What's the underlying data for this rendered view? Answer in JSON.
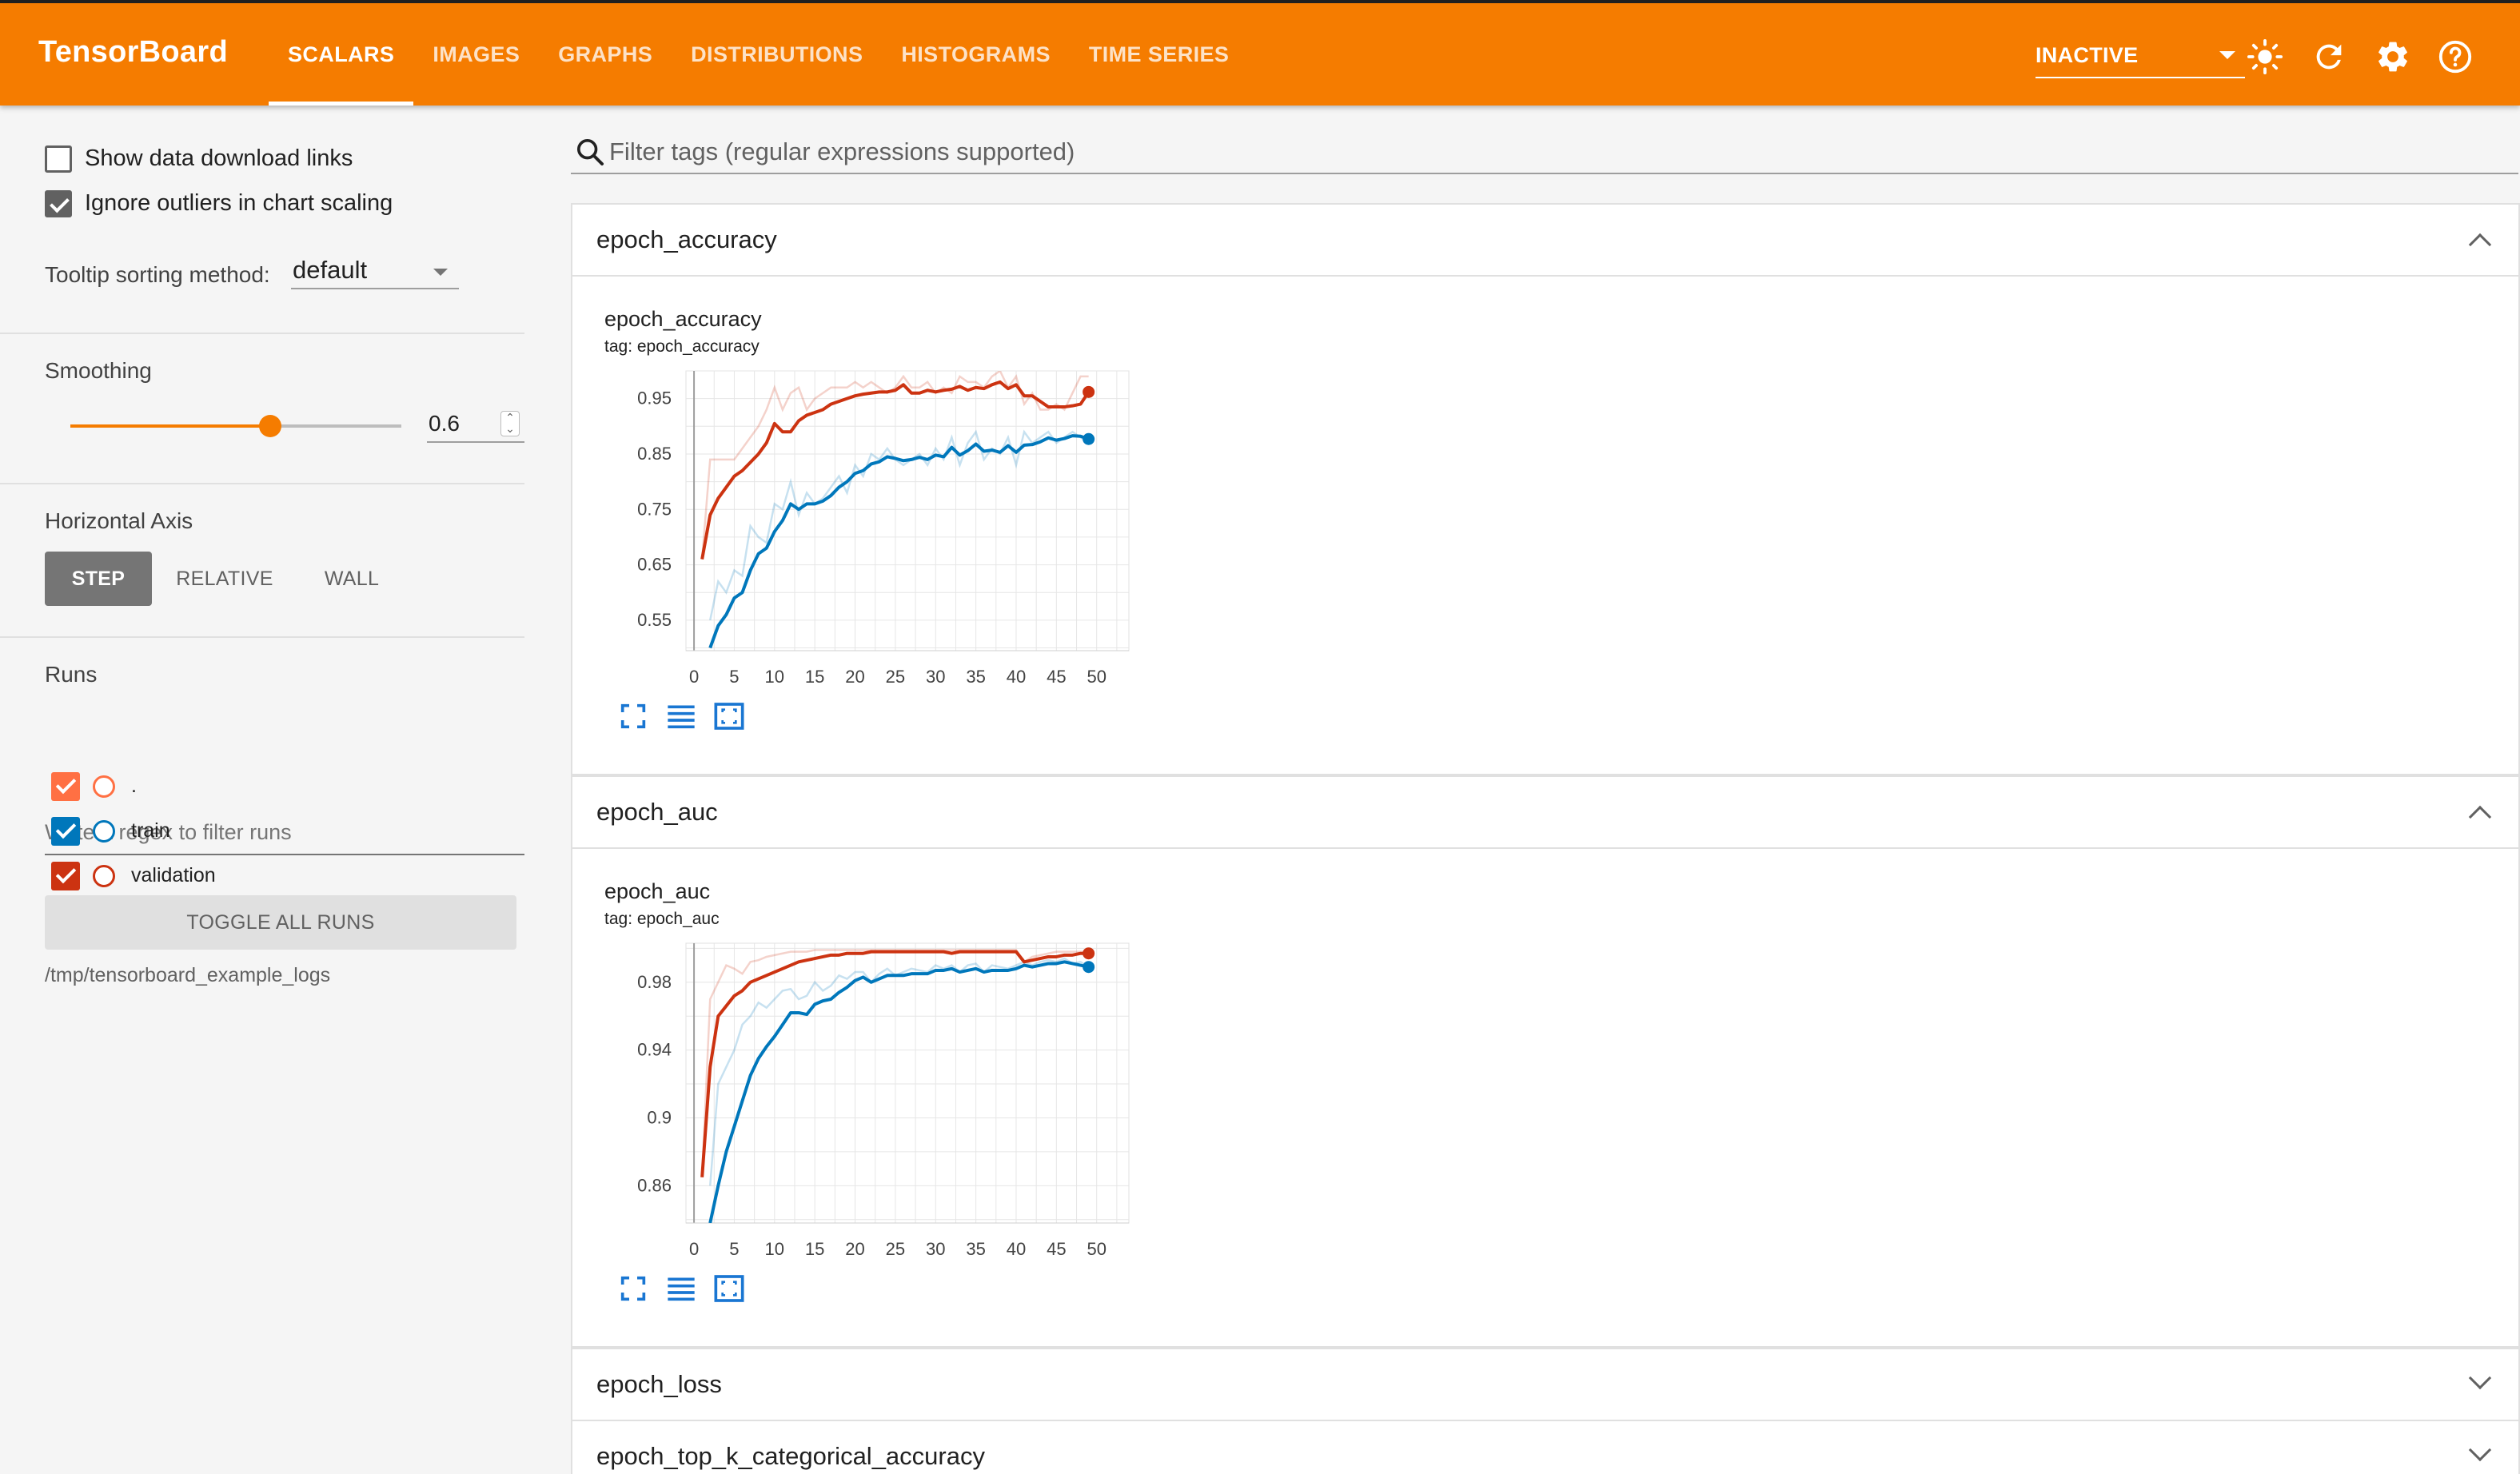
{
  "app": {
    "title": "TensorBoard",
    "tabs": [
      "SCALARS",
      "IMAGES",
      "GRAPHS",
      "DISTRIBUTIONS",
      "HISTOGRAMS",
      "TIME SERIES"
    ],
    "active_tab": "SCALARS",
    "status_select": "INACTIVE",
    "accent_color": "#f57c00",
    "icons": [
      "sun-icon",
      "refresh-icon",
      "settings-gear-icon",
      "help-icon"
    ]
  },
  "sidebar": {
    "show_download_links": {
      "label": "Show data download links",
      "checked": false
    },
    "ignore_outliers": {
      "label": "Ignore outliers in chart scaling",
      "checked": true
    },
    "tooltip_sorting": {
      "label": "Tooltip sorting method:",
      "value": "default"
    },
    "smoothing": {
      "label": "Smoothing",
      "value": "0.6",
      "fraction": 0.6
    },
    "horizontal_axis": {
      "label": "Horizontal Axis",
      "options": [
        "STEP",
        "RELATIVE",
        "WALL"
      ],
      "selected": "STEP"
    },
    "runs": {
      "label": "Runs",
      "filter_placeholder": "Write a regex to filter runs",
      "items": [
        {
          "name": ".",
          "color": "#ff7043",
          "checked": true
        },
        {
          "name": "train",
          "color": "#0077bb",
          "checked": true
        },
        {
          "name": "validation",
          "color": "#cc3311",
          "checked": true
        }
      ],
      "toggle_all": "TOGGLE ALL RUNS",
      "logdir": "/tmp/tensorboard_example_logs"
    }
  },
  "main": {
    "filter_placeholder": "Filter tags (regular expressions supported)",
    "cards": [
      {
        "title": "epoch_accuracy",
        "expanded": true
      },
      {
        "title": "epoch_auc",
        "expanded": true
      },
      {
        "title": "epoch_loss",
        "expanded": false
      },
      {
        "title": "epoch_top_k_categorical_accuracy",
        "expanded": false
      }
    ]
  },
  "chart_data": [
    {
      "type": "line",
      "title": "epoch_accuracy",
      "subtitle": "tag: epoch_accuracy",
      "xlim": [
        -1,
        54
      ],
      "ylim": [
        0.495,
        1.0
      ],
      "xticks": [
        0,
        5,
        10,
        15,
        20,
        25,
        30,
        35,
        40,
        45,
        50
      ],
      "yticks": [
        0.55,
        0.65,
        0.75,
        0.85,
        0.95
      ],
      "ytick_labels": [
        "0.55",
        "0.65",
        "0.75",
        "0.85",
        "0.95"
      ],
      "series": [
        {
          "name": "train",
          "color": "#0077bb",
          "x": [
            2,
            3,
            4,
            5,
            6,
            7,
            8,
            9,
            10,
            11,
            12,
            13,
            14,
            15,
            16,
            17,
            18,
            19,
            20,
            21,
            22,
            23,
            24,
            25,
            26,
            27,
            28,
            29,
            30,
            31,
            32,
            33,
            34,
            35,
            36,
            37,
            38,
            39,
            40,
            41,
            42,
            43,
            44,
            45,
            46,
            47,
            48,
            49
          ],
          "raw": [
            0.55,
            0.62,
            0.6,
            0.64,
            0.63,
            0.72,
            0.7,
            0.69,
            0.76,
            0.75,
            0.8,
            0.74,
            0.78,
            0.76,
            0.77,
            0.79,
            0.81,
            0.78,
            0.83,
            0.81,
            0.85,
            0.84,
            0.86,
            0.84,
            0.83,
            0.84,
            0.85,
            0.83,
            0.86,
            0.84,
            0.88,
            0.83,
            0.87,
            0.89,
            0.84,
            0.86,
            0.85,
            0.88,
            0.83,
            0.89,
            0.87,
            0.88,
            0.89,
            0.87,
            0.88,
            0.89,
            0.88,
            0.87
          ],
          "smoothed": [
            0.5,
            0.54,
            0.56,
            0.59,
            0.6,
            0.64,
            0.67,
            0.68,
            0.71,
            0.73,
            0.76,
            0.75,
            0.76,
            0.76,
            0.765,
            0.775,
            0.79,
            0.8,
            0.815,
            0.82,
            0.832,
            0.836,
            0.845,
            0.842,
            0.838,
            0.84,
            0.844,
            0.84,
            0.848,
            0.845,
            0.862,
            0.848,
            0.856,
            0.868,
            0.855,
            0.857,
            0.853,
            0.865,
            0.853,
            0.866,
            0.867,
            0.872,
            0.879,
            0.875,
            0.878,
            0.883,
            0.882,
            0.877
          ]
        },
        {
          "name": "validation",
          "color": "#cc3311",
          "x": [
            1,
            2,
            3,
            4,
            5,
            6,
            7,
            8,
            9,
            10,
            11,
            12,
            13,
            14,
            15,
            16,
            17,
            18,
            19,
            20,
            21,
            22,
            23,
            24,
            25,
            26,
            27,
            28,
            29,
            30,
            31,
            32,
            33,
            34,
            35,
            36,
            37,
            38,
            39,
            40,
            41,
            42,
            43,
            44,
            45,
            46,
            47,
            48,
            49
          ],
          "raw": [
            0.66,
            0.84,
            0.84,
            0.84,
            0.84,
            0.86,
            0.88,
            0.9,
            0.93,
            0.97,
            0.93,
            0.96,
            0.97,
            0.93,
            0.95,
            0.96,
            0.97,
            0.97,
            0.97,
            0.98,
            0.97,
            0.98,
            0.97,
            0.96,
            0.97,
            0.99,
            0.97,
            0.97,
            0.98,
            0.96,
            0.97,
            0.96,
            0.99,
            0.98,
            0.98,
            0.97,
            0.99,
            1.0,
            0.97,
            0.99,
            0.94,
            0.96,
            0.93,
            0.93,
            0.94,
            0.93,
            0.96,
            0.99,
            0.99
          ],
          "smoothed": [
            0.66,
            0.74,
            0.77,
            0.79,
            0.81,
            0.82,
            0.835,
            0.85,
            0.87,
            0.905,
            0.89,
            0.89,
            0.91,
            0.92,
            0.925,
            0.93,
            0.94,
            0.945,
            0.95,
            0.955,
            0.958,
            0.96,
            0.962,
            0.962,
            0.965,
            0.975,
            0.96,
            0.96,
            0.965,
            0.962,
            0.965,
            0.967,
            0.972,
            0.965,
            0.97,
            0.968,
            0.975,
            0.98,
            0.968,
            0.975,
            0.955,
            0.955,
            0.945,
            0.935,
            0.935,
            0.935,
            0.937,
            0.94,
            0.962
          ]
        }
      ]
    },
    {
      "type": "line",
      "title": "epoch_auc",
      "subtitle": "tag: epoch_auc",
      "xlim": [
        -1,
        54
      ],
      "ylim": [
        0.838,
        1.003
      ],
      "xticks": [
        0,
        5,
        10,
        15,
        20,
        25,
        30,
        35,
        40,
        45,
        50
      ],
      "yticks": [
        0.86,
        0.9,
        0.94,
        0.98
      ],
      "ytick_labels": [
        "0.86",
        "0.9",
        "0.94",
        "0.98"
      ],
      "series": [
        {
          "name": "train",
          "color": "#0077bb",
          "x": [
            2,
            3,
            4,
            5,
            6,
            7,
            8,
            9,
            10,
            11,
            12,
            13,
            14,
            15,
            16,
            17,
            18,
            19,
            20,
            21,
            22,
            23,
            24,
            25,
            26,
            27,
            28,
            29,
            30,
            31,
            32,
            33,
            34,
            35,
            36,
            37,
            38,
            39,
            40,
            41,
            42,
            43,
            44,
            45,
            46,
            47,
            48,
            49
          ],
          "raw": [
            0.86,
            0.92,
            0.93,
            0.94,
            0.955,
            0.96,
            0.968,
            0.965,
            0.97,
            0.975,
            0.976,
            0.97,
            0.972,
            0.98,
            0.975,
            0.978,
            0.984,
            0.982,
            0.986,
            0.986,
            0.98,
            0.985,
            0.988,
            0.984,
            0.986,
            0.988,
            0.987,
            0.986,
            0.99,
            0.988,
            0.99,
            0.986,
            0.99,
            0.991,
            0.986,
            0.99,
            0.989,
            0.988,
            0.99,
            0.992,
            0.99,
            0.992,
            0.993,
            0.992,
            0.994,
            0.991,
            0.992,
            0.989
          ],
          "smoothed": [
            0.838,
            0.86,
            0.88,
            0.895,
            0.91,
            0.925,
            0.935,
            0.942,
            0.948,
            0.955,
            0.962,
            0.962,
            0.961,
            0.967,
            0.969,
            0.97,
            0.974,
            0.977,
            0.981,
            0.983,
            0.98,
            0.982,
            0.984,
            0.984,
            0.984,
            0.985,
            0.985,
            0.985,
            0.987,
            0.987,
            0.988,
            0.986,
            0.987,
            0.988,
            0.986,
            0.987,
            0.987,
            0.987,
            0.988,
            0.99,
            0.989,
            0.99,
            0.991,
            0.991,
            0.992,
            0.991,
            0.99,
            0.989
          ]
        },
        {
          "name": "validation",
          "color": "#cc3311",
          "x": [
            1,
            2,
            3,
            4,
            5,
            6,
            7,
            8,
            9,
            10,
            11,
            12,
            13,
            14,
            15,
            16,
            17,
            18,
            19,
            20,
            21,
            22,
            23,
            24,
            25,
            26,
            27,
            28,
            29,
            30,
            31,
            32,
            33,
            34,
            35,
            36,
            37,
            38,
            39,
            40,
            41,
            42,
            43,
            44,
            45,
            46,
            47,
            48,
            49
          ],
          "raw": [
            0.865,
            0.97,
            0.98,
            0.99,
            0.988,
            0.985,
            0.992,
            0.993,
            0.995,
            0.996,
            0.997,
            0.998,
            0.998,
            0.998,
            0.999,
            0.999,
            0.999,
            0.999,
            0.999,
            0.999,
            0.999,
            0.999,
            0.999,
            0.999,
            0.999,
            0.999,
            0.999,
            0.999,
            0.999,
            0.999,
            0.999,
            0.999,
            0.999,
            0.999,
            0.999,
            0.999,
            0.999,
            0.999,
            0.999,
            0.999,
            0.992,
            0.995,
            0.996,
            0.997,
            0.998,
            0.998,
            0.998,
            0.998,
            0.998
          ],
          "smoothed": [
            0.865,
            0.93,
            0.96,
            0.966,
            0.972,
            0.975,
            0.98,
            0.982,
            0.984,
            0.986,
            0.988,
            0.99,
            0.992,
            0.993,
            0.994,
            0.995,
            0.996,
            0.996,
            0.997,
            0.997,
            0.997,
            0.998,
            0.998,
            0.998,
            0.998,
            0.998,
            0.998,
            0.998,
            0.998,
            0.998,
            0.998,
            0.997,
            0.998,
            0.998,
            0.998,
            0.998,
            0.998,
            0.998,
            0.998,
            0.998,
            0.992,
            0.993,
            0.994,
            0.995,
            0.995,
            0.996,
            0.996,
            0.997,
            0.997
          ]
        }
      ]
    }
  ]
}
